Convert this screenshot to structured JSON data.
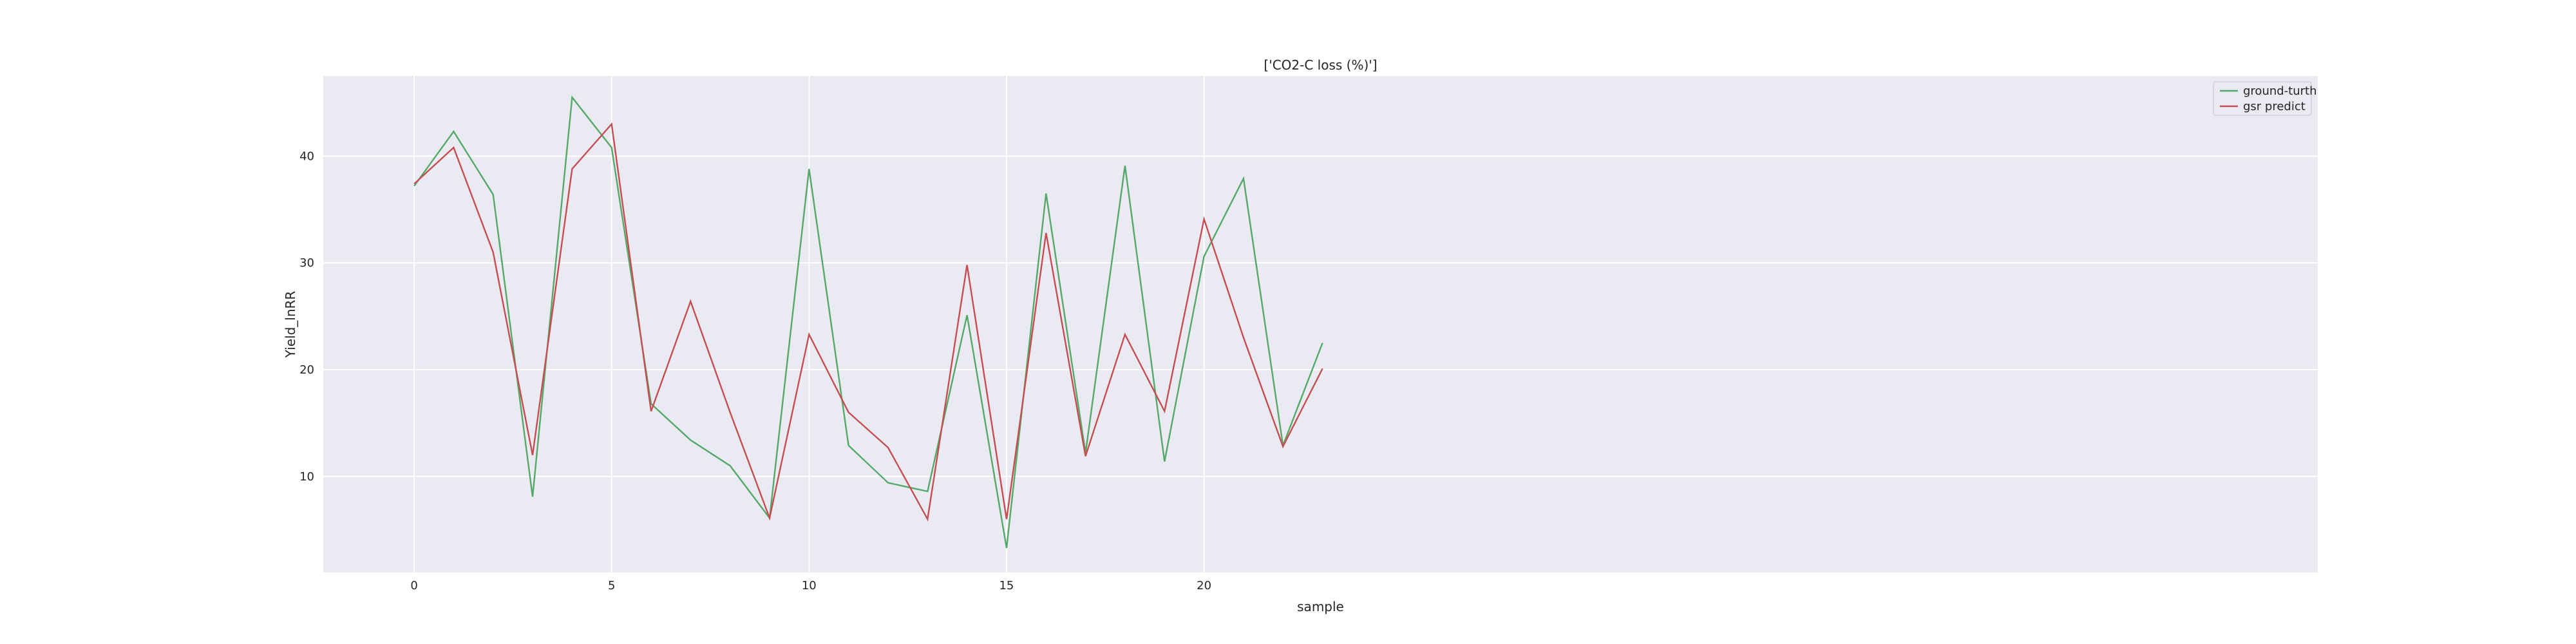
{
  "chart_data": {
    "type": "line",
    "title": "['CO2-C loss (%)']",
    "xlabel": "sample",
    "ylabel": "Yield_lnRR",
    "x": [
      0,
      1,
      2,
      3,
      4,
      5,
      6,
      7,
      8,
      9,
      10,
      11,
      12,
      13,
      14,
      15,
      16,
      17,
      18,
      19,
      20,
      21,
      22,
      23
    ],
    "xlim": [
      -2.3,
      48.2
    ],
    "ylim": [
      1,
      47.5
    ],
    "xticks": [
      0,
      5,
      10,
      15,
      20
    ],
    "yticks": [
      10,
      20,
      30,
      40
    ],
    "grid": true,
    "legend_position": "top-right",
    "series": [
      {
        "name": "ground-turth",
        "color": "#55a868",
        "values": [
          37.2,
          42.3,
          36.4,
          8.1,
          45.5,
          40.8,
          16.8,
          13.4,
          11.0,
          6.1,
          38.8,
          12.9,
          9.4,
          8.6,
          25.1,
          3.3,
          36.5,
          12.2,
          39.1,
          11.4,
          30.6,
          37.9,
          12.9,
          22.5
        ]
      },
      {
        "name": "gsr predict",
        "color": "#c44e52",
        "values": [
          37.4,
          40.8,
          31.0,
          12.0,
          38.8,
          43.0,
          16.1,
          26.4,
          16.0,
          6.1,
          23.3,
          16.0,
          12.7,
          6.0,
          29.8,
          6.0,
          32.8,
          11.9,
          23.3,
          16.1,
          34.1,
          23.0,
          12.8,
          20.1
        ]
      }
    ]
  }
}
